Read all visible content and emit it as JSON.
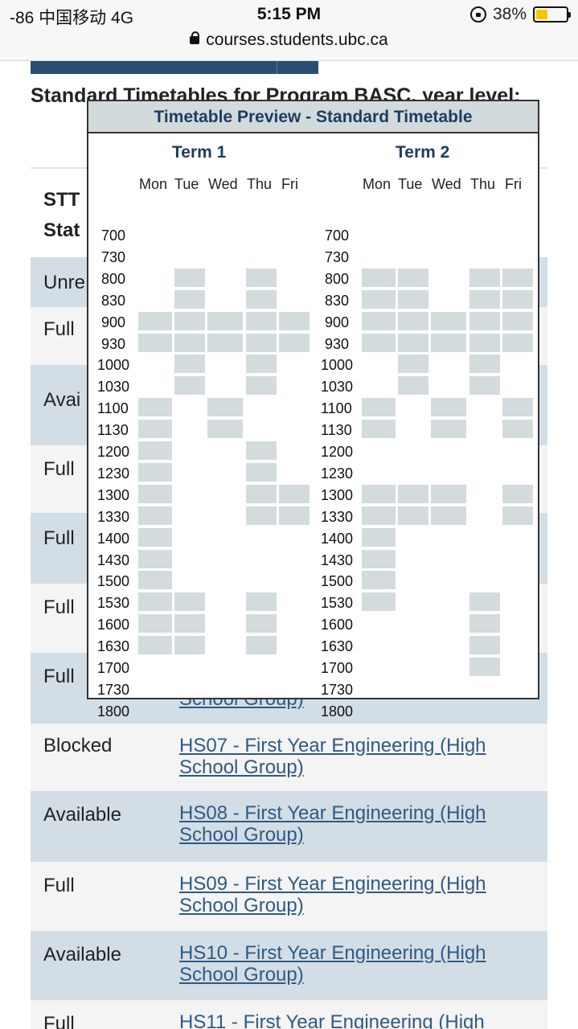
{
  "status_bar": {
    "carrier": "-86 中国移动  4G",
    "time": "5:15 PM",
    "battery": "38%",
    "battery_level": 0.38
  },
  "url_bar": {
    "url": "courses.students.ubc.ca"
  },
  "page": {
    "title": "Standard Timetables for Program BASC, year level:",
    "header_col1_line1": "STT",
    "header_col1_line2": "Stat"
  },
  "rows": [
    {
      "status": "Unre",
      "course": ""
    },
    {
      "status": "Full",
      "course": ""
    },
    {
      "status": "Avai",
      "course": ""
    },
    {
      "status": "Full",
      "course": ""
    },
    {
      "status": "Full",
      "course": ""
    },
    {
      "status": "Full",
      "course": ""
    },
    {
      "status": "Full",
      "course": "School Group)"
    },
    {
      "status": "Blocked",
      "course": "HS07 - First Year Engineering (High School Group)"
    },
    {
      "status": "Available",
      "course": "HS08 - First Year Engineering (High School Group)"
    },
    {
      "status": "Full",
      "course": "HS09 - First Year Engineering (High School Group)"
    },
    {
      "status": "Available",
      "course": "HS10 - First Year Engineering (High School Group)"
    },
    {
      "status": "Full",
      "course": "HS11 - First Year Engineering (High"
    }
  ],
  "modal": {
    "title": "Timetable Preview - Standard Timetable",
    "days": [
      "Mon",
      "Tue",
      "Wed",
      "Thu",
      "Fri"
    ],
    "times": [
      "700",
      "730",
      "800",
      "830",
      "900",
      "930",
      "1000",
      "1030",
      "1100",
      "1130",
      "1200",
      "1230",
      "1300",
      "1330",
      "1400",
      "1430",
      "1500",
      "1530",
      "1600",
      "1630",
      "1700",
      "1730",
      "1800"
    ],
    "terms": [
      {
        "title": "Term 1",
        "slots": {
          "Mon": [
            "900",
            "930",
            "1100",
            "1130",
            "1200",
            "1230",
            "1300",
            "1330",
            "1400",
            "1430",
            "1500",
            "1530",
            "1600",
            "1630"
          ],
          "Tue": [
            "800",
            "830",
            "900",
            "930",
            "1000",
            "1030",
            "1530",
            "1600",
            "1630"
          ],
          "Wed": [
            "900",
            "930",
            "1100",
            "1130"
          ],
          "Thu": [
            "800",
            "830",
            "900",
            "930",
            "1000",
            "1030",
            "1200",
            "1230",
            "1300",
            "1330",
            "1530",
            "1600",
            "1630"
          ],
          "Fri": [
            "900",
            "930",
            "1300",
            "1330"
          ]
        }
      },
      {
        "title": "Term 2",
        "slots": {
          "Mon": [
            "800",
            "830",
            "900",
            "930",
            "1100",
            "1130",
            "1300",
            "1330",
            "1400",
            "1430",
            "1500",
            "1530"
          ],
          "Tue": [
            "800",
            "830",
            "900",
            "930",
            "1000",
            "1030",
            "1300",
            "1330"
          ],
          "Wed": [
            "900",
            "930",
            "1100",
            "1130",
            "1300",
            "1330"
          ],
          "Thu": [
            "800",
            "830",
            "900",
            "930",
            "1000",
            "1030",
            "1530",
            "1600",
            "1630",
            "1700"
          ],
          "Fri": [
            "800",
            "830",
            "900",
            "930",
            "1100",
            "1130",
            "1300",
            "1330"
          ]
        }
      }
    ]
  }
}
